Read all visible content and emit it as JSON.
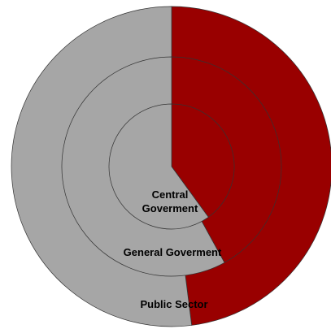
{
  "chart_data": {
    "type": "pie",
    "title": "",
    "colors": {
      "red": "#990000",
      "grey": "#A6A6A6",
      "edge": "#333333"
    },
    "rings": [
      {
        "name": "Public Sector",
        "label": "Public Sector",
        "values": {
          "red": 48,
          "grey": 52
        }
      },
      {
        "name": "General Goverment",
        "label": "General Goverment",
        "values": {
          "red": 42,
          "grey": 58
        }
      },
      {
        "name": "Central Goverment",
        "label_lines": [
          "Central",
          "Goverment"
        ],
        "values": {
          "red": 40,
          "grey": 60
        }
      }
    ]
  }
}
